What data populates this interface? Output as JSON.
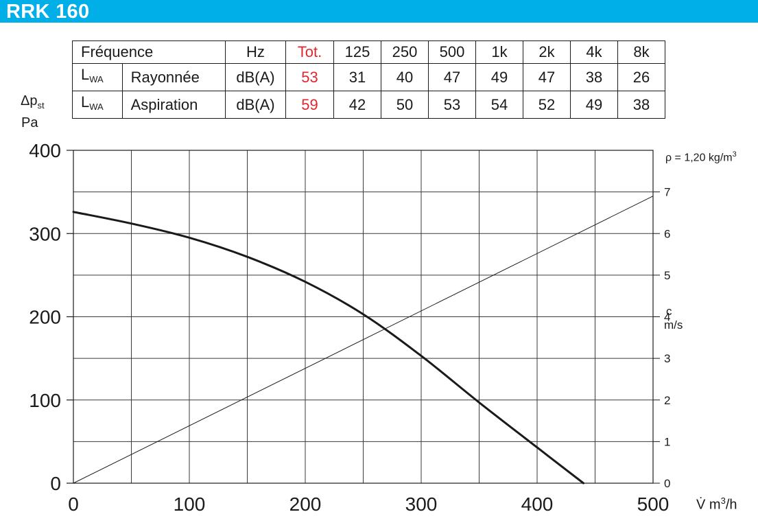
{
  "header": {
    "title": "RRK 160"
  },
  "sound_table": {
    "header_label": "Fréquence",
    "unit_header": "Hz",
    "total_header": "Tot.",
    "bands": [
      "125",
      "250",
      "500",
      "1k",
      "2k",
      "4k",
      "8k"
    ],
    "rows": [
      {
        "symbol": "L",
        "symbol_sub": "WA",
        "label": "Rayonnée",
        "unit": "dB(A)",
        "total": "53",
        "values": [
          "31",
          "40",
          "47",
          "49",
          "47",
          "38",
          "26"
        ]
      },
      {
        "symbol": "L",
        "symbol_sub": "WA",
        "label": "Aspiration",
        "unit": "dB(A)",
        "total": "59",
        "values": [
          "42",
          "50",
          "53",
          "54",
          "52",
          "49",
          "38"
        ]
      }
    ],
    "total_color": "#e3262e"
  },
  "chart_data": {
    "type": "line",
    "ylabel_symbol": "Δp",
    "ylabel_sub": "st",
    "ylabel_unit": "Pa",
    "xlabel_symbol": "V̇",
    "xlabel_unit": "m",
    "xlabel_sup": "3",
    "xlabel_suffix": "/h",
    "density_prefix": "ρ = 1,20 kg/m",
    "density_sup": "3",
    "y2label_line1": "c",
    "y2label_line2": "m/s",
    "xlim": [
      0,
      500
    ],
    "ylim": [
      0,
      400
    ],
    "y2lim": [
      0,
      7
    ],
    "x_ticks": [
      "0",
      "100",
      "200",
      "300",
      "400",
      "500"
    ],
    "y_ticks": [
      "0",
      "100",
      "200",
      "300",
      "400"
    ],
    "y2_ticks": [
      "0",
      "1",
      "2",
      "3",
      "4",
      "5",
      "6",
      "7"
    ],
    "grid": true,
    "series": [
      {
        "axis": "left",
        "line_width": 3,
        "x": [
          0,
          50,
          100,
          150,
          200,
          250,
          300,
          350,
          400,
          440
        ],
        "y": [
          326,
          312,
          295,
          272,
          242,
          203,
          153,
          97,
          43,
          0
        ]
      },
      {
        "axis": "right",
        "line_width": 1,
        "x": [
          0,
          500
        ],
        "y": [
          0,
          6.9
        ]
      }
    ]
  }
}
